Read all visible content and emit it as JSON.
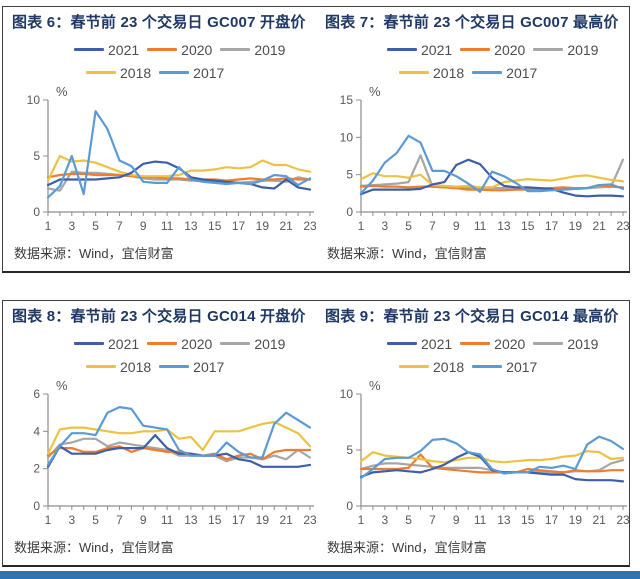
{
  "colors": {
    "y2021": "#3D5FA9",
    "y2020": "#ED7D31",
    "y2019": "#A6A6A6",
    "y2018": "#ECC243",
    "y2017": "#5B9BD5",
    "accent_bar": "#2E74B5",
    "title_text": "#1F3864"
  },
  "legend": {
    "rows": [
      [
        {
          "label": "2021",
          "color": "y2021"
        },
        {
          "label": "2020",
          "color": "y2020"
        },
        {
          "label": "2019",
          "color": "y2019"
        }
      ],
      [
        {
          "label": "2018",
          "color": "y2018"
        },
        {
          "label": "2017",
          "color": "y2017"
        }
      ]
    ]
  },
  "sections": [
    {
      "panels": [
        {
          "title": "图表 6：春节前 23 个交易日 GC007 开盘价",
          "source": "数据来源：Wind，宜信财富"
        },
        {
          "title": "图表 7：春节前 23 个交易日 GC007 最高价",
          "source": "数据来源：Wind，宜信财富"
        }
      ]
    },
    {
      "panels": [
        {
          "title": "图表 8：春节前 23 个交易日 GC014 开盘价",
          "source": "数据来源：Wind，宜信财富"
        },
        {
          "title": "图表 9：春节前 23 个交易日 GC014 最高价",
          "source": "数据来源：Wind，宜信财富"
        }
      ]
    }
  ],
  "chart_data": [
    {
      "type": "line",
      "title": "图表 6：春节前 23 个交易日 GC007 开盘价",
      "ylabel": "%",
      "ylim": [
        0,
        10
      ],
      "yticks": [
        0,
        5,
        10
      ],
      "x": [
        1,
        2,
        3,
        4,
        5,
        6,
        7,
        8,
        9,
        10,
        11,
        12,
        13,
        14,
        15,
        16,
        17,
        18,
        19,
        20,
        21,
        22,
        23
      ],
      "xtick_labels": [
        1,
        3,
        5,
        7,
        9,
        11,
        13,
        15,
        17,
        19,
        21,
        23
      ],
      "legend_position": "top",
      "grid": false,
      "series": [
        {
          "name": "2021",
          "color": "y2021",
          "values": [
            2.4,
            2.9,
            2.9,
            2.9,
            2.9,
            3.0,
            3.1,
            3.5,
            4.3,
            4.5,
            4.4,
            3.9,
            3.1,
            2.9,
            2.8,
            2.7,
            2.6,
            2.5,
            2.2,
            2.1,
            2.9,
            2.2,
            2.0
          ]
        },
        {
          "name": "2020",
          "color": "y2020",
          "values": [
            3.1,
            3.3,
            3.4,
            3.4,
            3.3,
            3.3,
            3.3,
            3.2,
            3.1,
            3.1,
            3.0,
            3.0,
            2.9,
            2.9,
            2.9,
            2.8,
            2.9,
            3.0,
            2.9,
            2.9,
            3.0,
            2.9,
            2.9
          ]
        },
        {
          "name": "2019",
          "color": "y2019",
          "values": [
            2.1,
            1.9,
            3.6,
            3.5,
            3.5,
            3.4,
            3.3,
            3.2,
            3.0,
            2.9,
            2.9,
            2.9,
            2.8,
            2.8,
            2.7,
            2.6,
            2.6,
            2.7,
            2.8,
            2.8,
            2.7,
            3.1,
            2.9
          ]
        },
        {
          "name": "2018",
          "color": "y2018",
          "values": [
            2.8,
            5.0,
            4.5,
            4.6,
            4.4,
            4.0,
            3.6,
            3.3,
            3.2,
            3.2,
            3.2,
            3.3,
            3.7,
            3.7,
            3.8,
            4.0,
            3.9,
            4.0,
            4.6,
            4.2,
            4.2,
            3.8,
            3.6
          ]
        },
        {
          "name": "2017",
          "color": "y2017",
          "values": [
            1.3,
            2.3,
            5.0,
            1.6,
            9.0,
            7.4,
            4.6,
            4.1,
            2.7,
            2.6,
            2.6,
            4.0,
            2.9,
            2.7,
            2.6,
            2.5,
            2.6,
            2.5,
            2.8,
            3.3,
            3.2,
            2.4,
            3.0
          ]
        }
      ]
    },
    {
      "type": "line",
      "title": "图表 7：春节前 23 个交易日 GC007 最高价",
      "ylabel": "%",
      "ylim": [
        0,
        15
      ],
      "yticks": [
        0,
        5,
        10,
        15
      ],
      "x": [
        1,
        2,
        3,
        4,
        5,
        6,
        7,
        8,
        9,
        10,
        11,
        12,
        13,
        14,
        15,
        16,
        17,
        18,
        19,
        20,
        21,
        22,
        23
      ],
      "xtick_labels": [
        1,
        3,
        5,
        7,
        9,
        11,
        13,
        15,
        17,
        19,
        21,
        23
      ],
      "legend_position": "top",
      "grid": false,
      "series": [
        {
          "name": "2021",
          "color": "y2021",
          "values": [
            2.4,
            3.0,
            3.0,
            3.0,
            3.0,
            3.1,
            3.7,
            4.0,
            6.3,
            7.0,
            6.4,
            4.6,
            3.5,
            3.3,
            3.3,
            3.2,
            3.1,
            2.6,
            2.2,
            2.1,
            2.2,
            2.2,
            2.1
          ]
        },
        {
          "name": "2020",
          "color": "y2020",
          "values": [
            3.4,
            3.5,
            3.4,
            3.4,
            3.3,
            3.4,
            3.4,
            3.3,
            3.2,
            3.0,
            3.0,
            2.9,
            2.9,
            3.0,
            3.0,
            3.1,
            3.2,
            3.3,
            3.2,
            3.2,
            3.6,
            3.4,
            3.3
          ]
        },
        {
          "name": "2019",
          "color": "y2019",
          "values": [
            3.5,
            3.6,
            3.7,
            3.8,
            4.0,
            7.6,
            3.4,
            3.3,
            3.3,
            3.3,
            3.2,
            3.2,
            3.2,
            3.1,
            3.1,
            3.0,
            3.0,
            3.1,
            3.1,
            3.2,
            3.3,
            3.4,
            7.0
          ]
        },
        {
          "name": "2018",
          "color": "y2018",
          "values": [
            4.4,
            5.2,
            4.8,
            4.8,
            4.6,
            5.0,
            3.6,
            3.5,
            3.4,
            3.5,
            3.3,
            3.3,
            4.0,
            4.2,
            4.4,
            4.3,
            4.2,
            4.5,
            4.8,
            4.9,
            4.6,
            4.3,
            4.1
          ]
        },
        {
          "name": "2017",
          "color": "y2017",
          "values": [
            2.5,
            4.2,
            6.6,
            7.9,
            10.2,
            9.3,
            5.5,
            5.5,
            4.8,
            3.8,
            2.7,
            5.4,
            4.8,
            3.9,
            2.8,
            2.8,
            2.9,
            3.0,
            3.1,
            3.2,
            3.6,
            3.7,
            3.1
          ]
        }
      ]
    },
    {
      "type": "line",
      "title": "图表 8：春节前 23 个交易日 GC014 开盘价",
      "ylabel": "%",
      "ylim": [
        0,
        6
      ],
      "yticks": [
        0,
        2,
        4,
        6
      ],
      "x": [
        1,
        2,
        3,
        4,
        5,
        6,
        7,
        8,
        9,
        10,
        11,
        12,
        13,
        14,
        15,
        16,
        17,
        18,
        19,
        20,
        21,
        22,
        23
      ],
      "xtick_labels": [
        1,
        3,
        5,
        7,
        9,
        11,
        13,
        15,
        17,
        19,
        21,
        23
      ],
      "legend_position": "top",
      "grid": false,
      "series": [
        {
          "name": "2021",
          "color": "y2021",
          "values": [
            2.1,
            3.2,
            2.8,
            2.8,
            2.8,
            3.0,
            3.1,
            3.1,
            3.1,
            3.8,
            3.1,
            2.8,
            2.8,
            2.7,
            2.7,
            2.8,
            2.5,
            2.4,
            2.1,
            2.1,
            2.1,
            2.1,
            2.2
          ]
        },
        {
          "name": "2020",
          "color": "y2020",
          "values": [
            2.7,
            3.1,
            3.1,
            2.9,
            2.9,
            3.1,
            3.2,
            2.9,
            3.1,
            3.0,
            2.9,
            2.9,
            2.8,
            2.7,
            2.8,
            2.5,
            2.7,
            2.8,
            2.5,
            2.9,
            3.0,
            3.0,
            3.0
          ]
        },
        {
          "name": "2019",
          "color": "y2019",
          "values": [
            2.6,
            3.3,
            3.4,
            3.6,
            3.6,
            3.2,
            3.4,
            3.3,
            3.2,
            3.1,
            3.0,
            2.7,
            2.7,
            2.7,
            2.7,
            2.4,
            2.6,
            2.6,
            2.5,
            2.7,
            2.5,
            3.0,
            2.6
          ]
        },
        {
          "name": "2018",
          "color": "y2018",
          "values": [
            2.8,
            4.1,
            4.2,
            4.2,
            4.1,
            4.0,
            3.9,
            3.9,
            4.0,
            4.0,
            4.1,
            3.6,
            3.7,
            3.0,
            4.0,
            4.0,
            4.0,
            4.2,
            4.4,
            4.5,
            4.2,
            3.9,
            3.2
          ]
        },
        {
          "name": "2017",
          "color": "y2017",
          "values": [
            2.2,
            3.2,
            3.9,
            3.9,
            3.8,
            5.0,
            5.3,
            5.2,
            4.3,
            4.2,
            4.1,
            3.0,
            2.7,
            2.7,
            2.7,
            3.4,
            2.9,
            2.6,
            2.6,
            4.4,
            5.0,
            4.6,
            4.2
          ]
        }
      ]
    },
    {
      "type": "line",
      "title": "图表 9：春节前 23 个交易日 GC014 最高价",
      "ylabel": "%",
      "ylim": [
        0,
        10
      ],
      "yticks": [
        0,
        5,
        10
      ],
      "x": [
        1,
        2,
        3,
        4,
        5,
        6,
        7,
        8,
        9,
        10,
        11,
        12,
        13,
        14,
        15,
        16,
        17,
        18,
        19,
        20,
        21,
        22,
        23
      ],
      "xtick_labels": [
        1,
        3,
        5,
        7,
        9,
        11,
        13,
        15,
        17,
        19,
        21,
        23
      ],
      "legend_position": "top",
      "grid": false,
      "series": [
        {
          "name": "2021",
          "color": "y2021",
          "values": [
            2.6,
            3.0,
            3.1,
            3.2,
            3.1,
            3.0,
            3.3,
            3.7,
            4.3,
            4.8,
            4.4,
            3.2,
            3.0,
            3.0,
            3.0,
            2.9,
            2.8,
            2.8,
            2.4,
            2.3,
            2.3,
            2.3,
            2.2
          ]
        },
        {
          "name": "2020",
          "color": "y2020",
          "values": [
            3.3,
            3.3,
            3.3,
            3.3,
            3.4,
            4.6,
            3.4,
            3.3,
            3.2,
            3.1,
            3.0,
            3.0,
            3.0,
            3.0,
            3.3,
            3.2,
            3.1,
            3.0,
            3.2,
            3.1,
            3.1,
            3.2,
            3.2
          ]
        },
        {
          "name": "2019",
          "color": "y2019",
          "values": [
            3.3,
            3.6,
            3.8,
            3.8,
            3.7,
            3.6,
            3.5,
            3.4,
            3.4,
            3.4,
            3.4,
            3.2,
            3.0,
            3.0,
            3.0,
            3.1,
            3.0,
            3.0,
            3.1,
            3.1,
            3.2,
            3.8,
            4.1
          ]
        },
        {
          "name": "2018",
          "color": "y2018",
          "values": [
            4.0,
            4.8,
            4.5,
            4.4,
            4.3,
            4.2,
            4.0,
            3.9,
            4.1,
            4.3,
            4.3,
            4.0,
            3.9,
            4.0,
            4.1,
            4.1,
            4.2,
            4.4,
            4.5,
            4.9,
            4.8,
            4.2,
            4.3
          ]
        },
        {
          "name": "2017",
          "color": "y2017",
          "values": [
            2.5,
            3.3,
            4.2,
            4.3,
            4.3,
            4.9,
            5.9,
            6.0,
            5.6,
            4.8,
            4.6,
            3.3,
            2.9,
            3.0,
            3.0,
            3.5,
            3.4,
            3.6,
            3.3,
            5.5,
            6.2,
            5.8,
            5.1
          ]
        }
      ]
    }
  ]
}
